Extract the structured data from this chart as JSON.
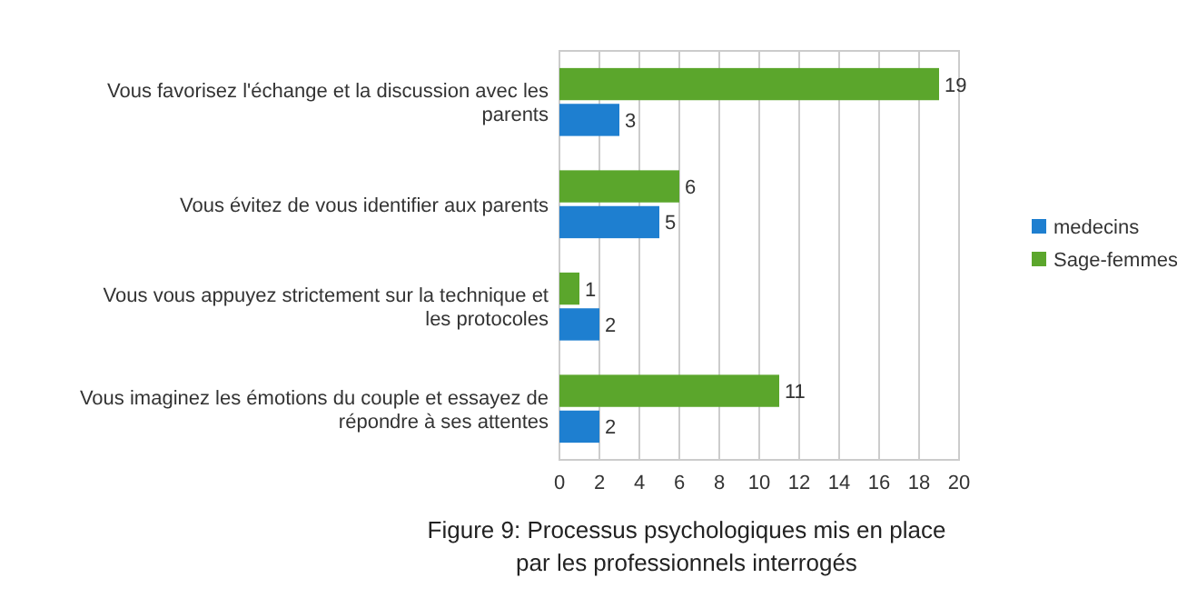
{
  "chart_data": {
    "type": "bar",
    "orientation": "horizontal",
    "title": "Figure 9: Processus psychologiques mis en place",
    "subtitle": "par les professionnels interrogés",
    "categories": [
      "Vous favorisez l'échange et la discussion avec les parents",
      "Vous évitez de vous identifier aux parents",
      "Vous vous appuyez strictement sur la technique et les protocoles",
      "Vous imaginez les émotions du couple et essayez de répondre à ses attentes"
    ],
    "series": [
      {
        "name": "medecins",
        "color": "#1e7fd0",
        "values": [
          3,
          5,
          2,
          2
        ]
      },
      {
        "name": "Sage-femmes",
        "color": "#5ba62c",
        "values": [
          19,
          6,
          1,
          11
        ]
      }
    ],
    "xlim": [
      0,
      20
    ],
    "xticks": [
      0,
      2,
      4,
      6,
      8,
      10,
      12,
      14,
      16,
      18,
      20
    ],
    "grid": "x",
    "legend": "right",
    "data_labels": true
  }
}
